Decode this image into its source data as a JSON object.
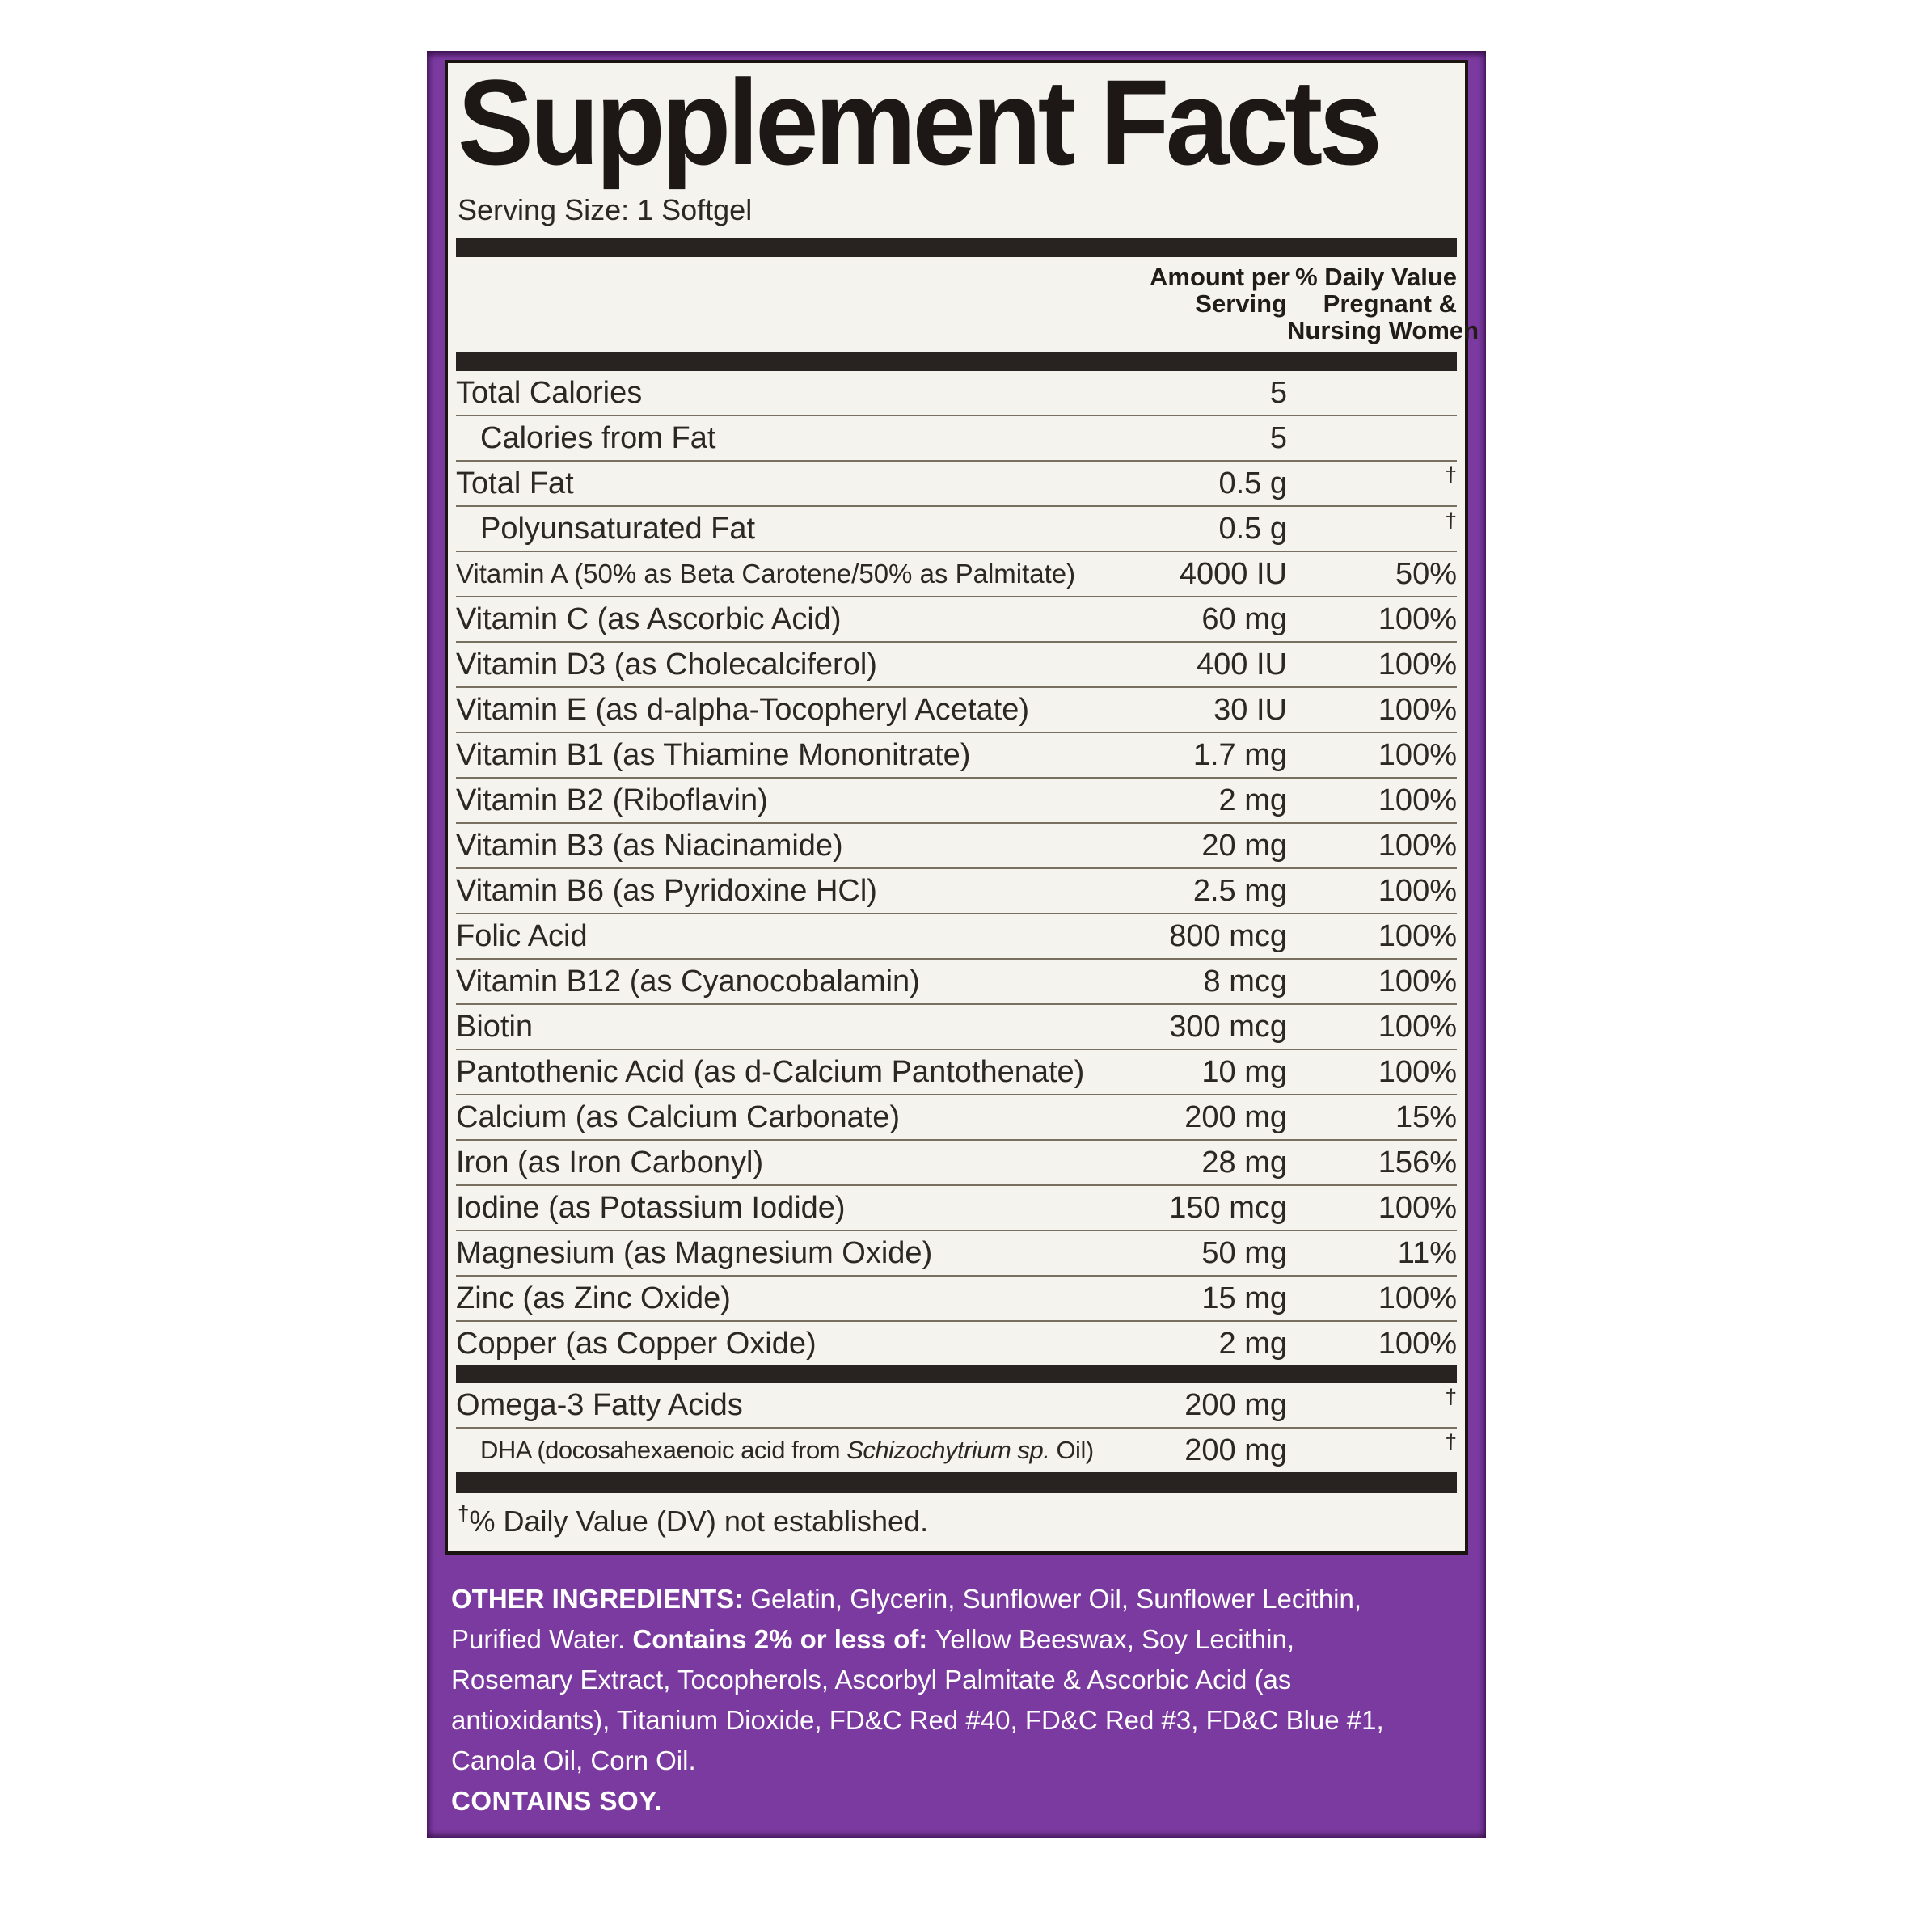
{
  "label": {
    "title": "Supplement Facts",
    "serving_size": "Serving Size: 1 Softgel",
    "columns": {
      "amount": [
        "Amount per",
        "Serving"
      ],
      "daily_value": [
        "% Daily Value",
        "Pregnant &",
        "Nursing Women"
      ]
    },
    "rows": [
      {
        "name": "Total Calories",
        "amount": "5",
        "dv": "",
        "indent": false
      },
      {
        "name": "Calories from Fat",
        "amount": "5",
        "dv": "",
        "indent": true
      },
      {
        "name": "Total Fat",
        "amount": "0.5 g",
        "dv": "†",
        "indent": false
      },
      {
        "name": "Polyunsaturated Fat",
        "amount": "0.5 g",
        "dv": "†",
        "indent": true
      },
      {
        "name": "Vitamin A (50% as Beta Carotene/50% as Palmitate)",
        "amount": "4000 IU",
        "dv": "50%",
        "indent": false
      },
      {
        "name": "Vitamin C (as Ascorbic Acid)",
        "amount": "60 mg",
        "dv": "100%",
        "indent": false
      },
      {
        "name": "Vitamin D3 (as Cholecalciferol)",
        "amount": "400 IU",
        "dv": "100%",
        "indent": false
      },
      {
        "name": "Vitamin E (as d-alpha-Tocopheryl Acetate)",
        "amount": "30 IU",
        "dv": "100%",
        "indent": false
      },
      {
        "name": "Vitamin B1 (as Thiamine Mononitrate)",
        "amount": "1.7 mg",
        "dv": "100%",
        "indent": false
      },
      {
        "name": "Vitamin B2 (Riboflavin)",
        "amount": "2 mg",
        "dv": "100%",
        "indent": false
      },
      {
        "name": "Vitamin B3 (as Niacinamide)",
        "amount": "20 mg",
        "dv": "100%",
        "indent": false
      },
      {
        "name": "Vitamin B6 (as Pyridoxine HCl)",
        "amount": "2.5 mg",
        "dv": "100%",
        "indent": false
      },
      {
        "name": "Folic Acid",
        "amount": "800 mcg",
        "dv": "100%",
        "indent": false
      },
      {
        "name": "Vitamin B12 (as Cyanocobalamin)",
        "amount": "8 mcg",
        "dv": "100%",
        "indent": false
      },
      {
        "name": "Biotin",
        "amount": "300 mcg",
        "dv": "100%",
        "indent": false
      },
      {
        "name": "Pantothenic Acid (as d-Calcium Pantothenate)",
        "amount": "10 mg",
        "dv": "100%",
        "indent": false
      },
      {
        "name": "Calcium (as Calcium Carbonate)",
        "amount": "200 mg",
        "dv": "15%",
        "indent": false
      },
      {
        "name": "Iron (as Iron Carbonyl)",
        "amount": "28 mg",
        "dv": "156%",
        "indent": false
      },
      {
        "name": "Iodine (as Potassium Iodide)",
        "amount": "150 mcg",
        "dv": "100%",
        "indent": false
      },
      {
        "name": "Magnesium (as Magnesium Oxide)",
        "amount": "50 mg",
        "dv": "11%",
        "indent": false
      },
      {
        "name": "Zinc (as Zinc Oxide)",
        "amount": "15 mg",
        "dv": "100%",
        "indent": false
      },
      {
        "name": "Copper (as Copper Oxide)",
        "amount": "2 mg",
        "dv": "100%",
        "indent": false
      }
    ],
    "omega_rows": [
      {
        "name": "Omega-3 Fatty Acids",
        "amount": "200 mg",
        "dv": "†",
        "indent": false
      },
      {
        "name_prefix": "DHA (docosahexaenoic acid from ",
        "name_italic": "Schizochytrium sp.",
        "name_suffix": " Oil)",
        "amount": "200 mg",
        "dv": "†",
        "indent": true,
        "small": true
      }
    ],
    "footnote": "†% Daily Value (DV) not established."
  },
  "other_ingredients": {
    "segments": [
      {
        "text": "OTHER INGREDIENTS: ",
        "bold": true
      },
      {
        "text": "Gelatin, Glycerin, Sunflower Oil, Sunflower Lecithin, Purified Water. ",
        "bold": false
      },
      {
        "text": "Contains 2% or less of: ",
        "bold": true
      },
      {
        "text": "Yellow Beeswax, Soy Lecithin, Rosemary Extract, Tocopherols, Ascorbyl Palmitate & Ascorbic Acid (as antioxidants), Titanium Dioxide, FD&C Red #40, FD&C Red #3, FD&C Blue #1, Canola Oil, Corn Oil.",
        "bold": false
      }
    ],
    "contains": "CONTAINS SOY."
  },
  "colors": {
    "purple": "#7b3aa0",
    "panel_bg": "#f5f3ee",
    "ink": "#282320",
    "hairline": "#776f60",
    "white_text": "#ffffff"
  }
}
